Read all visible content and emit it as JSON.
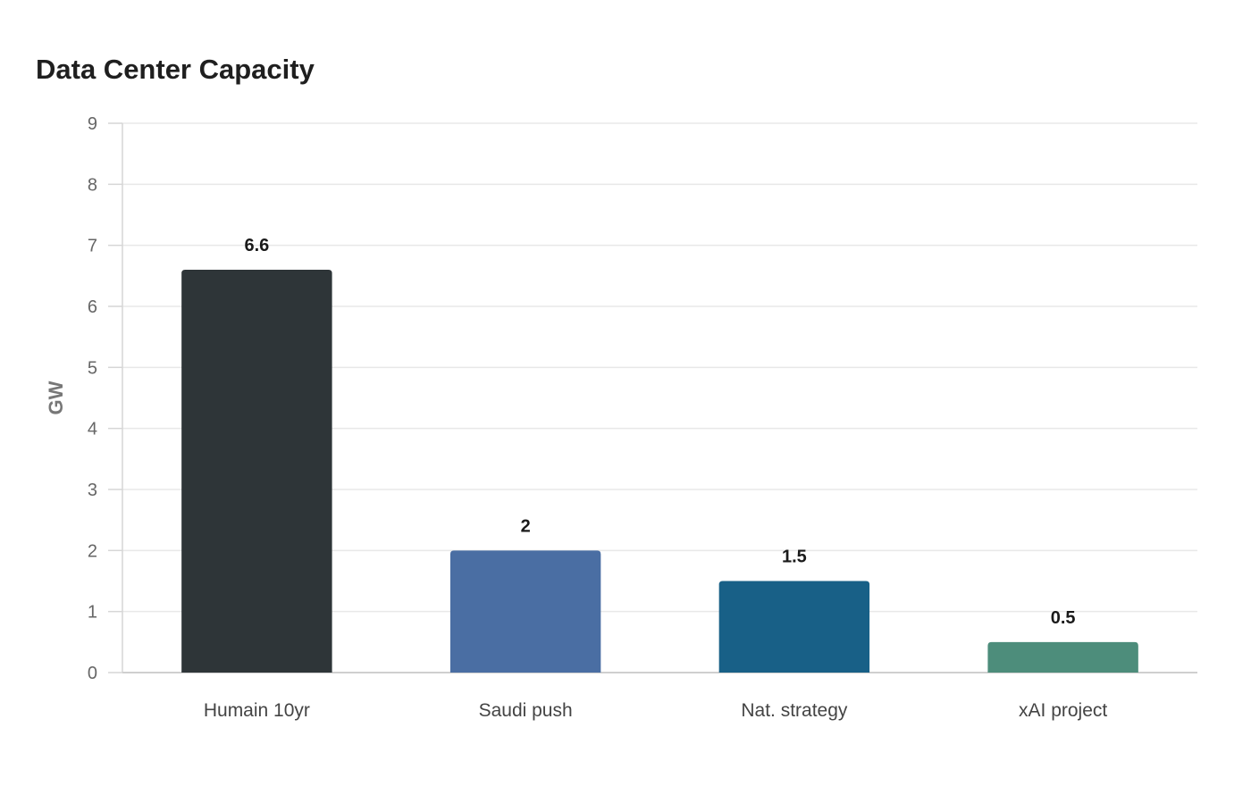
{
  "chart_data": {
    "type": "bar",
    "title": "Data Center Capacity",
    "xlabel": "",
    "ylabel": "GW",
    "categories": [
      "Humain 10yr",
      "Saudi push",
      "Nat. strategy",
      "xAI project"
    ],
    "values": [
      6.6,
      2,
      1.5,
      0.5
    ],
    "data_labels": [
      "6.6",
      "2",
      "1.5",
      "0.5"
    ],
    "colors": [
      "#2e3538",
      "#4a6ea3",
      "#186087",
      "#4d8d7b"
    ],
    "ylim": [
      0,
      9
    ],
    "yticks": [
      0,
      1,
      2,
      3,
      4,
      5,
      6,
      7,
      8,
      9
    ],
    "grid": true,
    "legend": "none"
  }
}
